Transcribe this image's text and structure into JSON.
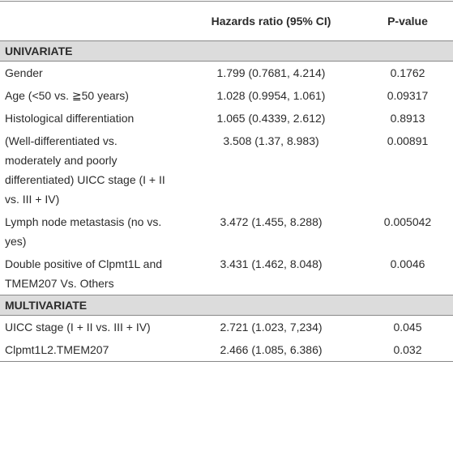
{
  "table": {
    "header": [
      "Hazards ratio (95% CI)",
      "P-value"
    ],
    "sections": [
      {
        "title": "UNIVARIATE",
        "rows": [
          [
            "Gender",
            "1.799 (0.7681, 4.214)",
            "0.1762"
          ],
          [
            "Age (<50 vs. ≧50 years)",
            "1.028 (0.9954, 1.061)",
            "0.09317"
          ],
          [
            "Histological differentiation",
            "1.065 (0.4339, 2.612)",
            "0.8913"
          ],
          [
            "(Well-differentiated vs. moderately and poorly differentiated) UICC stage (I + II vs. III + IV)",
            "3.508 (1.37, 8.983)",
            "0.00891"
          ],
          [
            "Lymph node metastasis (no vs. yes)",
            "3.472 (1.455, 8.288)",
            "0.005042"
          ],
          [
            "Double positive of Clpmt1L and TMEM207 Vs. Others",
            "3.431 (1.462, 8.048)",
            "0.0046"
          ]
        ]
      },
      {
        "title": "MULTIVARIATE",
        "rows": [
          [
            "UICC stage (I + II vs. III + IV)",
            "2.721 (1.023, 7,234)",
            "0.045"
          ],
          [
            "Clpmt1L2.TMEM207",
            "2.466 (1.085, 6.386)",
            "0.032"
          ]
        ]
      }
    ]
  }
}
